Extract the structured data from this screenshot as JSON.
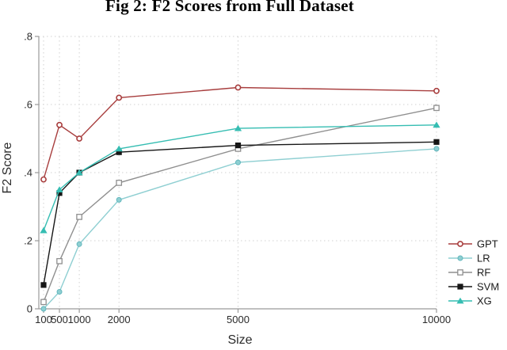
{
  "title": "Fig 2: F2 Scores from Full Dataset",
  "chart_data": {
    "type": "line",
    "title": "Fig 2: F2 Scores from Full Dataset",
    "xlabel": "Size",
    "ylabel": "F2 Score",
    "x": [
      100,
      500,
      1000,
      2000,
      5000,
      10000
    ],
    "xtick_labels": [
      "100",
      "500",
      "1000",
      "2000",
      "5000",
      "10000"
    ],
    "xlim": [
      100,
      10000
    ],
    "x_scale": "linear",
    "ylim": [
      0,
      0.8
    ],
    "yticks": [
      0,
      0.2,
      0.4,
      0.6,
      0.8
    ],
    "ytick_labels": [
      "0",
      ".2",
      ".4",
      ".6",
      ".8"
    ],
    "grid": "dotted",
    "legend_position": "right-bottom",
    "legend_entries": [
      "GPT",
      "LR",
      "RF",
      "SVM",
      "XG"
    ],
    "series": [
      {
        "name": "GPT",
        "color": "#a83e3e",
        "marker": "open-circle",
        "values": [
          0.38,
          0.54,
          0.5,
          0.62,
          0.65,
          0.64
        ]
      },
      {
        "name": "LR",
        "color": "#8fcfd2",
        "marker": "circle",
        "marker_stroke": "#63b7bd",
        "values": [
          0.0,
          0.05,
          0.19,
          0.32,
          0.43,
          0.47
        ]
      },
      {
        "name": "RF",
        "color": "#8f8f8f",
        "marker": "open-square",
        "values": [
          0.02,
          0.14,
          0.27,
          0.37,
          0.47,
          0.59
        ]
      },
      {
        "name": "SVM",
        "color": "#161616",
        "marker": "square",
        "values": [
          0.07,
          0.34,
          0.4,
          0.46,
          0.48,
          0.49
        ]
      },
      {
        "name": "XG",
        "color": "#35bdb2",
        "marker": "triangle",
        "values": [
          0.23,
          0.35,
          0.4,
          0.47,
          0.53,
          0.54
        ]
      }
    ],
    "style": {
      "axis_color": "#9a9a9a",
      "grid_color": "#d2d2d2",
      "tick_label_color": "#2b2b2b",
      "background": "#ffffff"
    }
  }
}
